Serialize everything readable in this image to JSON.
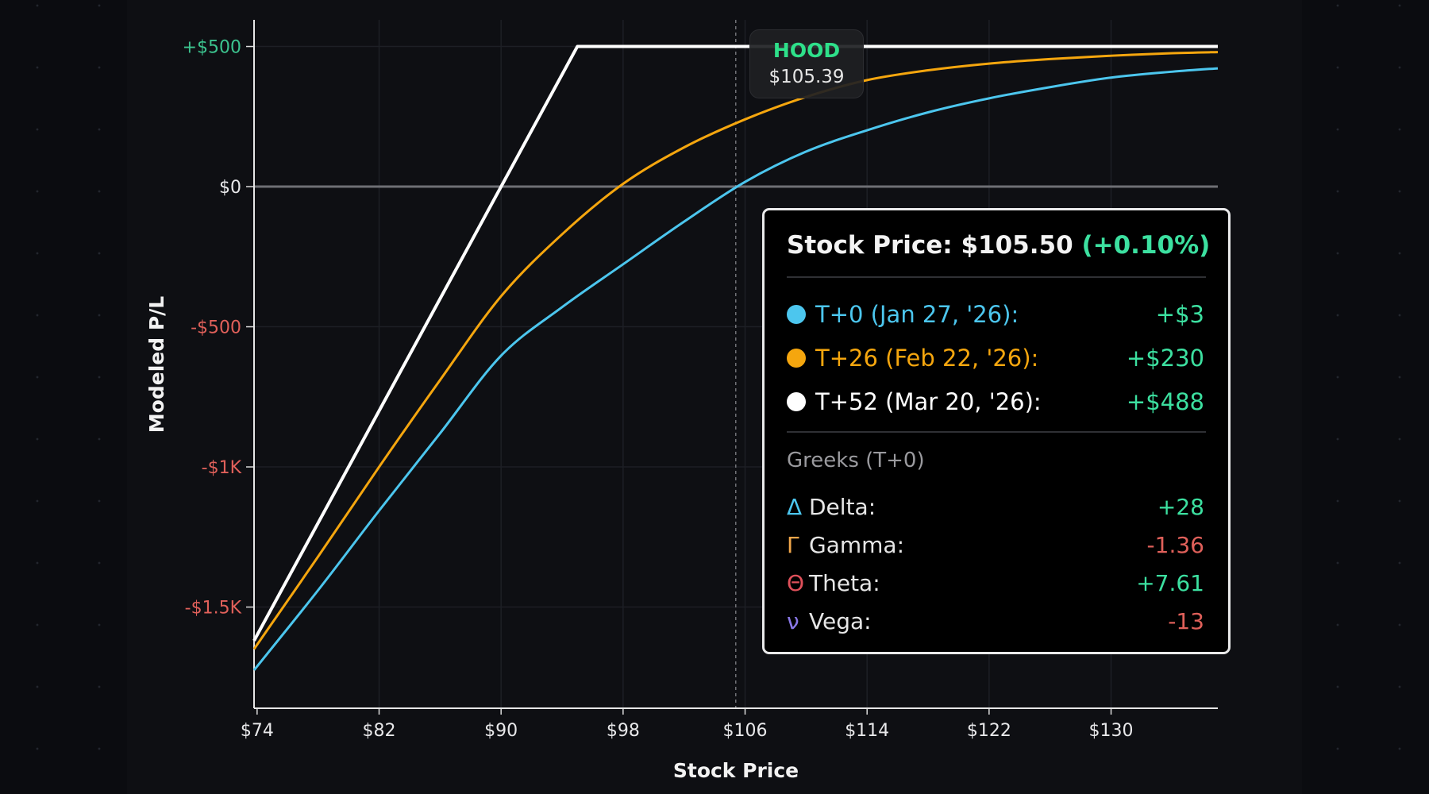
{
  "chart_data": {
    "type": "line",
    "xlabel": "Stock Price",
    "ylabel": "Modeled P/L",
    "xlim": [
      73.8,
      137
    ],
    "ylim": [
      -1861,
      595
    ],
    "x_ticks": [
      {
        "v": 74,
        "label": "$74"
      },
      {
        "v": 82,
        "label": "$82"
      },
      {
        "v": 90,
        "label": "$90"
      },
      {
        "v": 98,
        "label": "$98"
      },
      {
        "v": 106,
        "label": "$106"
      },
      {
        "v": 114,
        "label": "$114"
      },
      {
        "v": 122,
        "label": "$122"
      },
      {
        "v": 130,
        "label": "$130"
      }
    ],
    "y_ticks": [
      {
        "v": 500,
        "label": "+$500",
        "color": "#3cc48f"
      },
      {
        "v": 0,
        "label": "$0",
        "color": "#e8e8ea"
      },
      {
        "v": -500,
        "label": "-$500",
        "color": "#e0605a"
      },
      {
        "v": -1000,
        "label": "-$1K",
        "color": "#e0605a"
      },
      {
        "v": -1500,
        "label": "-$1.5K",
        "color": "#e0605a"
      }
    ],
    "grid": true,
    "cursor_x": 105.39,
    "series": [
      {
        "name": "T+0 (Jan 27, '26)",
        "color": "#4cc6ee",
        "x": [
          73.8,
          78,
          82,
          86,
          90,
          94,
          98,
          102,
          106,
          110,
          114,
          118,
          122,
          126,
          130,
          134,
          137
        ],
        "y": [
          -1725,
          -1440,
          -1156,
          -880,
          -603,
          -430,
          -277,
          -125,
          17,
          125,
          201,
          265,
          315,
          355,
          389,
          410,
          422
        ]
      },
      {
        "name": "T+26 (Feb 22, '26)",
        "color": "#f5a60e",
        "x": [
          73.8,
          78,
          82,
          86,
          90,
          94,
          98,
          102,
          106,
          110,
          114,
          118,
          122,
          126,
          130,
          134,
          137
        ],
        "y": [
          -1650,
          -1320,
          -1000,
          -690,
          -391,
          -170,
          10,
          140,
          240,
          320,
          380,
          415,
          439,
          455,
          467,
          476,
          480
        ]
      },
      {
        "name": "T+52 (Mar 20, '26)",
        "color": "#ffffff",
        "x": [
          73.8,
          95,
          137
        ],
        "y": [
          -1620,
          500,
          500
        ]
      }
    ]
  },
  "cursor_tooltip": {
    "symbol": "HOOD",
    "price": "$105.39"
  },
  "tooltip": {
    "title": "Stock Price: $105.50",
    "change": "(+0.10%)",
    "rows": [
      {
        "label": "T+0 (Jan 27, '26):",
        "value": "+$3",
        "color": "#4cc6ee"
      },
      {
        "label": "T+26 (Feb 22, '26):",
        "value": "+$230",
        "color": "#f5a60e"
      },
      {
        "label": "T+52 (Mar 20, '26):",
        "value": "+$488",
        "color": "#ffffff"
      }
    ],
    "greeks_label": "Greeks (T+0)",
    "greeks": [
      {
        "symbol": "Δ",
        "label": "Delta:",
        "value": "+28",
        "symbol_color": "#4cc6ee",
        "value_color": "#3ce0a0"
      },
      {
        "symbol": "Γ",
        "label": "Gamma:",
        "value": "-1.36",
        "symbol_color": "#f0a64a",
        "value_color": "#e0605a"
      },
      {
        "symbol": "Θ",
        "label": "Theta:",
        "value": "+7.61",
        "symbol_color": "#e0505a",
        "value_color": "#3ce0a0"
      },
      {
        "symbol": "ν",
        "label": "Vega:",
        "value": "-13",
        "symbol_color": "#8a78e8",
        "value_color": "#e0605a"
      }
    ]
  }
}
